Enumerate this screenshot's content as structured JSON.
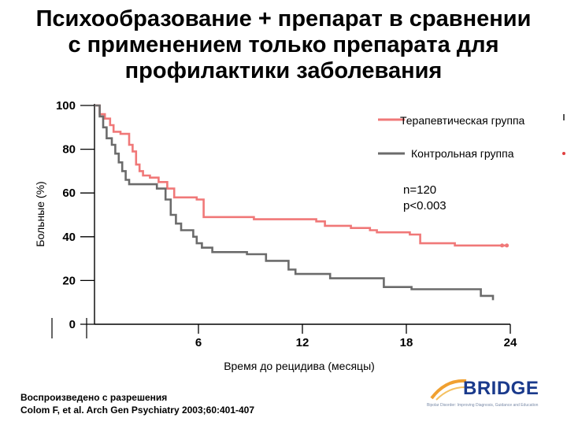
{
  "title": {
    "line1": "Психообразование + препарат в сравнении",
    "line2": "с применением только препарата для",
    "line3": "профилактики заболевания"
  },
  "legend": {
    "therapy": "Терапевтическая группа",
    "control": "Контрольная группа"
  },
  "stats": {
    "n": "n=120",
    "p": "p<0.003"
  },
  "citation": {
    "line1": "Воспроизведено с разрешения",
    "line2": "Colom F, et al. Arch Gen Psychiatry 2003;60:401-407"
  },
  "logo": {
    "brand": "BRIDGE",
    "tagline": "Bipolar Disorder: Improving Diagnosis, Guidance and Education"
  },
  "colors": {
    "therapy": "#f07878",
    "control": "#6b6b6b"
  },
  "chart_data": {
    "type": "line",
    "step": true,
    "xlabel": "Время до рецидива (месяцы)",
    "ylabel": "Больные (%)",
    "xlim": [
      0,
      24
    ],
    "ylim": [
      0,
      100
    ],
    "xticks": [
      "6",
      "12",
      "18",
      "24"
    ],
    "yticks": [
      "0",
      "20",
      "40",
      "60",
      "80",
      "100"
    ],
    "series": [
      {
        "name": "Терапевтическая группа",
        "color": "#f07878",
        "x": [
          0,
          0.3,
          0.6,
          0.9,
          1.1,
          1.5,
          2.0,
          2.2,
          2.4,
          2.6,
          2.8,
          3.2,
          3.7,
          4.2,
          4.6,
          5.9,
          6.3,
          8.2,
          9.2,
          10.4,
          12.8,
          13.3,
          14.8,
          15.9,
          16.3,
          17.0,
          18.2,
          18.8,
          20.8,
          23.8
        ],
        "y": [
          100,
          96,
          94,
          91,
          88,
          87,
          82,
          79,
          73,
          70,
          68,
          67,
          65,
          62,
          58,
          57,
          49,
          49,
          48,
          48,
          47,
          45,
          44,
          43,
          42,
          42,
          41,
          37,
          36,
          36
        ]
      },
      {
        "name": "Контрольная группа",
        "color": "#6b6b6b",
        "x": [
          0,
          0.3,
          0.5,
          0.7,
          1.0,
          1.2,
          1.4,
          1.6,
          1.8,
          2.0,
          3.6,
          4.1,
          4.4,
          4.7,
          5.0,
          5.7,
          5.9,
          6.2,
          6.8,
          8.8,
          9.9,
          11.2,
          11.6,
          13.6,
          16.7,
          18.3,
          22.3,
          23.0
        ],
        "y": [
          100,
          95,
          90,
          85,
          82,
          78,
          74,
          70,
          66,
          64,
          62,
          57,
          50,
          46,
          43,
          40,
          37,
          35,
          33,
          32,
          29,
          25,
          23,
          21,
          17,
          16,
          13,
          11
        ]
      }
    ]
  }
}
